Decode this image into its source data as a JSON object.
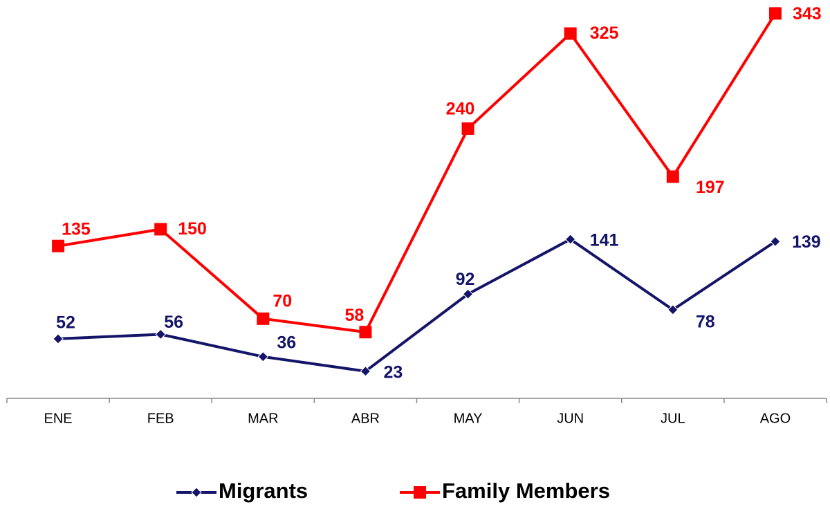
{
  "chart_data": {
    "type": "line",
    "categories": [
      "ENE",
      "FEB",
      "MAR",
      "ABR",
      "MAY",
      "JUN",
      "JUL",
      "AGO"
    ],
    "ylim": [
      0,
      355
    ],
    "series": [
      {
        "name": "Migrants",
        "color": "#141468",
        "marker": "diamond",
        "values": [
          52,
          56,
          36,
          23,
          92,
          141,
          78,
          139
        ]
      },
      {
        "name": "Family Members",
        "color": "#ff0000",
        "marker": "square",
        "values": [
          135,
          150,
          70,
          58,
          240,
          325,
          197,
          343
        ]
      }
    ]
  }
}
